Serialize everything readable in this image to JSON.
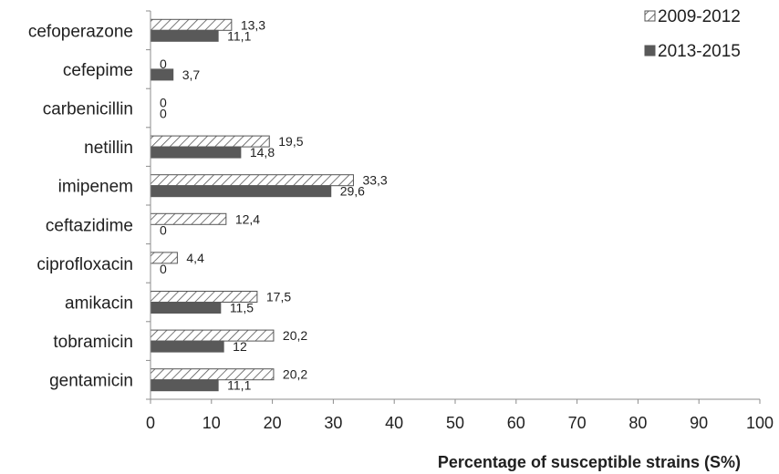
{
  "chart_data": {
    "type": "bar",
    "orientation": "horizontal",
    "categories": [
      "cefoperazone",
      "cefepime",
      "carbenicillin",
      "netillin",
      "imipenem",
      "ceftazidime",
      "ciprofloxacin",
      "amikacin",
      "tobramicin",
      "gentamicin"
    ],
    "series": [
      {
        "name": "2009-2012",
        "values": [
          13.3,
          0,
          0,
          19.5,
          33.3,
          12.4,
          4.4,
          17.5,
          20.2,
          20.2
        ],
        "labels": [
          "13,3",
          "0",
          "0",
          "19,5",
          "33,3",
          "12,4",
          "4,4",
          "17,5",
          "20,2",
          "20,2"
        ],
        "fill": "hatched",
        "color": "#595959"
      },
      {
        "name": "2013-2015",
        "values": [
          11.1,
          3.7,
          0,
          14.8,
          29.6,
          0,
          0,
          11.5,
          12,
          11.1
        ],
        "labels": [
          "11,1",
          "3,7",
          "0",
          "14,8",
          "29,6",
          "0",
          "0",
          "11,5",
          "12",
          "11,1"
        ],
        "fill": "solid",
        "color": "#595959"
      }
    ],
    "title": "",
    "xlabel": "Percentage of susceptible strains (S%)",
    "ylabel": "",
    "xlim": [
      0,
      100
    ],
    "xticks": [
      0,
      10,
      20,
      30,
      40,
      50,
      60,
      70,
      80,
      90,
      100
    ],
    "grid": false,
    "legend_position": "top-right"
  }
}
